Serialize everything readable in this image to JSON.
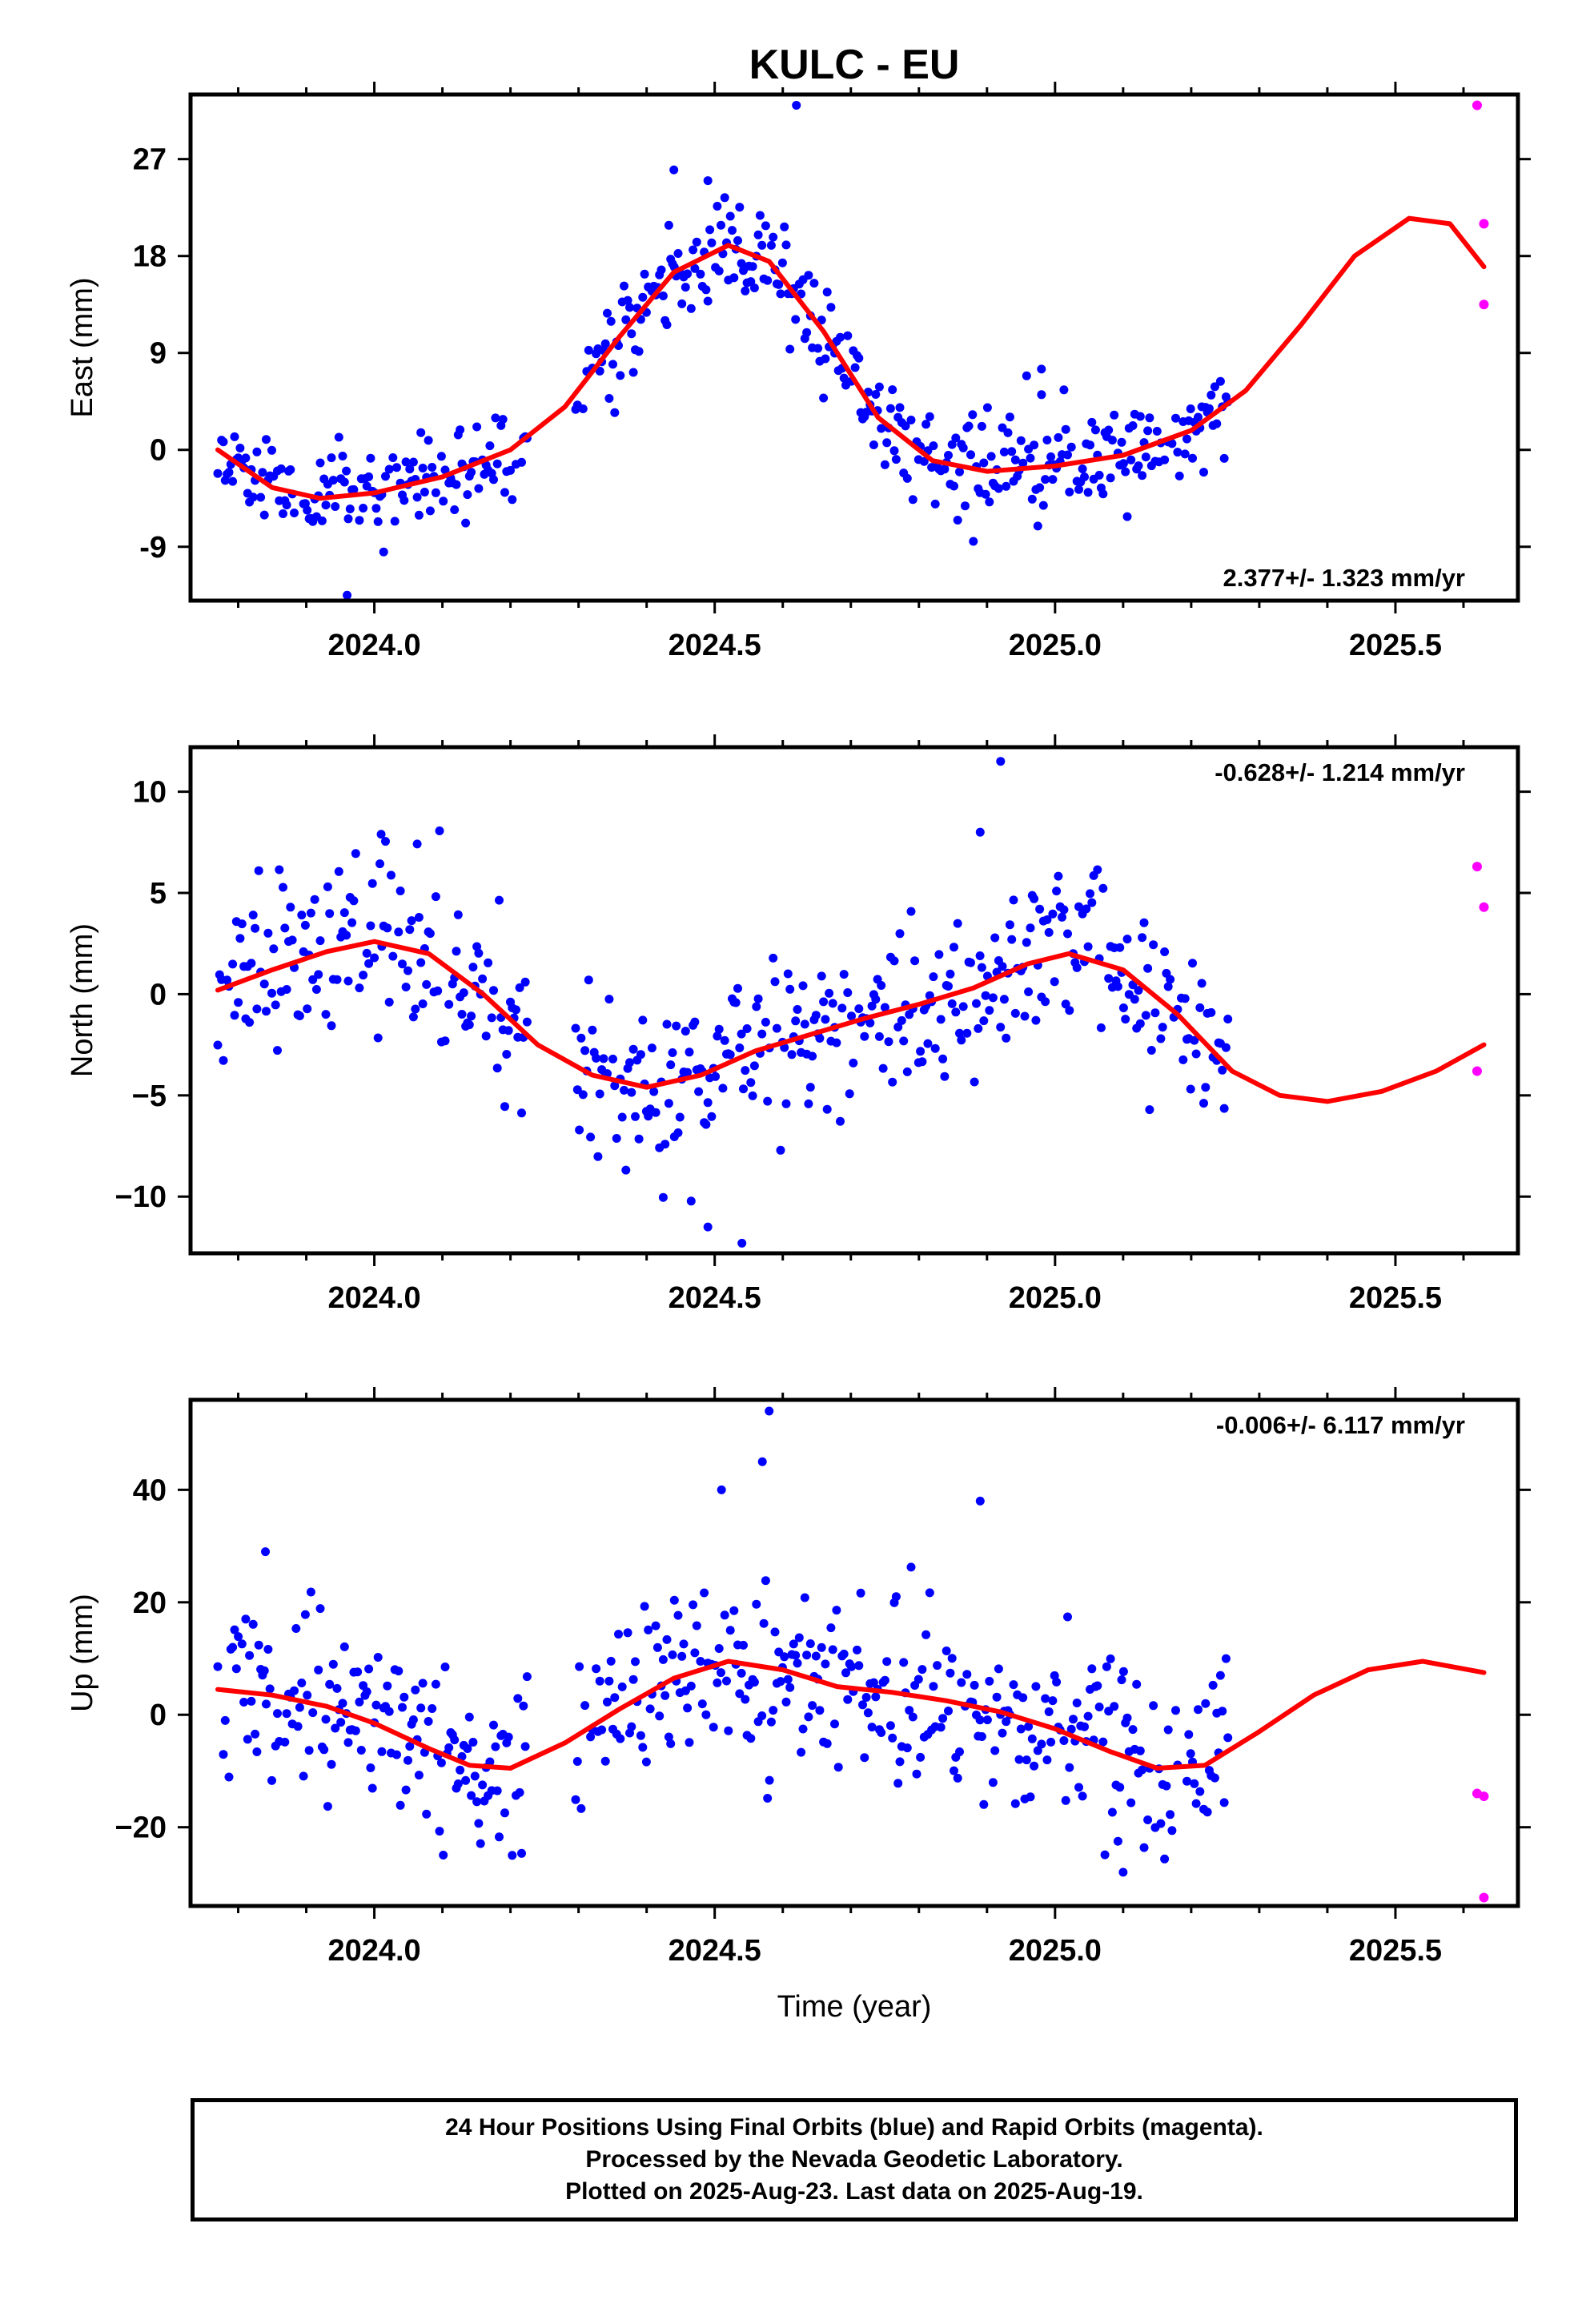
{
  "title": "KULC - EU",
  "colors": {
    "final": "#0000ff",
    "rapid": "#ff00ff",
    "fit": "#ff0000"
  },
  "footer": {
    "line1": "24 Hour Positions Using Final Orbits (blue) and Rapid Orbits (magenta).",
    "line2": "Processed by the Nevada Geodetic Laboratory.",
    "line3": "Plotted on 2025-Aug-23. Last data on 2025-Aug-19."
  },
  "chart_data": [
    {
      "type": "scatter",
      "component": "east",
      "ylabel": "East (mm)",
      "xlabel": "",
      "xlim": [
        2023.73,
        2025.68
      ],
      "ylim": [
        -14,
        33
      ],
      "xticks": [
        2024.0,
        2024.5,
        2025.0,
        2025.5
      ],
      "xtick_labels": [
        "2024.0",
        "2024.5",
        "2025.0",
        "2025.5"
      ],
      "yticks": [
        -9,
        0,
        9,
        18,
        27
      ],
      "ytick_labels": [
        "-9",
        "0",
        "9",
        "18",
        "27"
      ],
      "rate_text": "2.377+/- 1.323 mm/yr",
      "rate_position": "bottom-right",
      "grid": false,
      "fit_curve": {
        "x": [
          2023.77,
          2023.85,
          2023.92,
          2024.0,
          2024.1,
          2024.2,
          2024.28,
          2024.36,
          2024.44,
          2024.52,
          2024.58,
          2024.66,
          2024.74,
          2024.82,
          2024.9,
          2025.0,
          2025.1,
          2025.2,
          2025.28,
          2025.36,
          2025.44,
          2025.52,
          2025.58,
          2025.63
        ],
        "y": [
          0,
          -3.5,
          -4.5,
          -4,
          -2.5,
          0,
          4,
          10.5,
          16.5,
          19,
          17.5,
          11,
          3,
          -1,
          -2,
          -1.5,
          -0.5,
          1.8,
          5.5,
          11.5,
          18,
          21.5,
          21,
          17
        ]
      },
      "rapid_points": {
        "x": [
          2025.62,
          2025.63,
          2025.63
        ],
        "y": [
          32,
          21,
          13.5
        ]
      },
      "outliers": {
        "x": [
          2024.62,
          2023.96,
          2024.49,
          2024.44,
          2024.98,
          2024.88
        ],
        "y": [
          32,
          -13.5,
          25,
          26,
          7.5,
          -8.5
        ]
      }
    },
    {
      "type": "scatter",
      "component": "north",
      "ylabel": "North (mm)",
      "xlabel": "",
      "xlim": [
        2023.73,
        2025.68
      ],
      "ylim": [
        -12.8,
        12.2
      ],
      "xticks": [
        2024.0,
        2024.5,
        2025.0,
        2025.5
      ],
      "xtick_labels": [
        "2024.0",
        "2024.5",
        "2025.0",
        "2025.5"
      ],
      "yticks": [
        -10,
        -5,
        0,
        5,
        10
      ],
      "ytick_labels": [
        "−10",
        "−5",
        "0",
        "5",
        "10"
      ],
      "rate_text": "-0.628+/- 1.214 mm/yr",
      "rate_position": "top-right",
      "grid": false,
      "fit_curve": {
        "x": [
          2023.77,
          2023.85,
          2023.93,
          2024.0,
          2024.08,
          2024.16,
          2024.24,
          2024.32,
          2024.4,
          2024.48,
          2024.56,
          2024.64,
          2024.72,
          2024.8,
          2024.88,
          2024.96,
          2025.02,
          2025.1,
          2025.18,
          2025.26,
          2025.33,
          2025.4,
          2025.48,
          2025.56,
          2025.63
        ],
        "y": [
          0.2,
          1.2,
          2.1,
          2.6,
          2.0,
          0,
          -2.5,
          -4,
          -4.6,
          -4.0,
          -2.8,
          -2.0,
          -1.2,
          -0.5,
          0.3,
          1.5,
          2.0,
          1.2,
          -1.0,
          -3.8,
          -5.0,
          -5.3,
          -4.8,
          -3.8,
          -2.5
        ]
      },
      "rapid_points": {
        "x": [
          2025.62,
          2025.63,
          2025.62
        ],
        "y": [
          6.3,
          4.3,
          -3.8
        ]
      },
      "outliers": {
        "x": [
          2024.92,
          2024.89,
          2024.54,
          2024.49,
          2024.01
        ],
        "y": [
          11.5,
          8,
          -12.3,
          -11.5,
          7.9
        ]
      }
    },
    {
      "type": "scatter",
      "component": "up",
      "ylabel": "Up (mm)",
      "xlabel": "Time (year)",
      "xlim": [
        2023.73,
        2025.68
      ],
      "ylim": [
        -34,
        56
      ],
      "xticks": [
        2024.0,
        2024.5,
        2025.0,
        2025.5
      ],
      "xtick_labels": [
        "2024.0",
        "2024.5",
        "2025.0",
        "2025.5"
      ],
      "yticks": [
        -20,
        0,
        20,
        40
      ],
      "ytick_labels": [
        "−20",
        "0",
        "20",
        "40"
      ],
      "rate_text": "-0.006+/- 6.117 mm/yr",
      "rate_position": "top-right",
      "grid": false,
      "fit_curve": {
        "x": [
          2023.77,
          2023.85,
          2023.93,
          2024.0,
          2024.08,
          2024.14,
          2024.2,
          2024.28,
          2024.36,
          2024.44,
          2024.52,
          2024.6,
          2024.68,
          2024.76,
          2024.84,
          2024.92,
          2025.0,
          2025.08,
          2025.15,
          2025.22,
          2025.3,
          2025.38,
          2025.46,
          2025.54,
          2025.63
        ],
        "y": [
          4.5,
          3.5,
          1.5,
          -1.5,
          -6,
          -9,
          -9.5,
          -5,
          1,
          6.5,
          9.5,
          8,
          5,
          4,
          2.5,
          0.5,
          -2.5,
          -6.5,
          -9.5,
          -9,
          -3,
          3.5,
          8,
          9.5,
          7.5
        ]
      },
      "rapid_points": {
        "x": [
          2025.62,
          2025.63,
          2025.63
        ],
        "y": [
          -14,
          -14.5,
          -32.5
        ]
      },
      "outliers": {
        "x": [
          2024.58,
          2024.57,
          2024.89,
          2023.84,
          2025.1,
          2024.51
        ],
        "y": [
          54,
          45,
          38,
          29,
          -28,
          40
        ]
      }
    }
  ]
}
